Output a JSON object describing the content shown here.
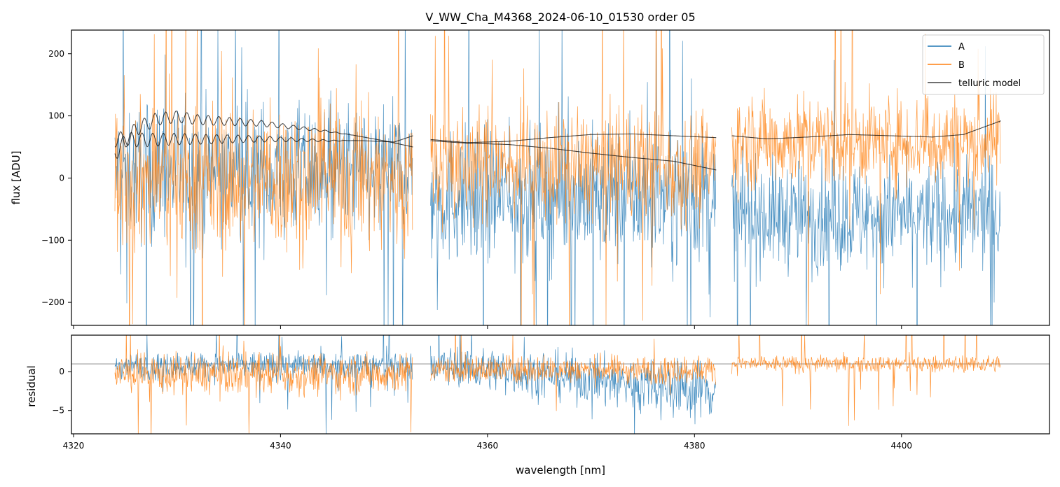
{
  "chart_data": {
    "type": "line",
    "title": "V_WW_Cha_M4368_2024-06-10_01530  order 05",
    "xlabel": "wavelength [nm]",
    "xlim": [
      4319.8,
      4414.3
    ],
    "xticks": [
      4320,
      4340,
      4360,
      4380,
      4400
    ],
    "xtick_labels": [
      "4320",
      "4340",
      "4360",
      "4380",
      "4400"
    ],
    "segments": [
      [
        4324,
        4352.8
      ],
      [
        4354.5,
        4382.1
      ],
      [
        4383.6,
        4409.6
      ]
    ],
    "top_panel": {
      "ylabel": "flux [ADU]",
      "ylim": [
        -237,
        238
      ],
      "yticks": [
        200,
        100,
        0,
        -100,
        -200
      ],
      "ytick_labels": [
        "200",
        "100",
        "0",
        "−100",
        "−200"
      ],
      "series": [
        {
          "name": "A",
          "color": "#1f77b4"
        },
        {
          "name": "B",
          "color": "#ff7f0e"
        },
        {
          "name": "telluric model",
          "color": "#000000"
        }
      ],
      "telluric_model": {
        "A": {
          "x": [
            4324,
            4326,
            4328,
            4330,
            4332,
            4334,
            4336,
            4338,
            4340,
            4342,
            4344,
            4346,
            4348,
            4350,
            4352.8,
            4354.5,
            4358,
            4362,
            4366,
            4370,
            4374,
            4378,
            4382.1
          ],
          "y": [
            52,
            90,
            105,
            108,
            102,
            99,
            96,
            93,
            88,
            83,
            78,
            72,
            66,
            60,
            50,
            60,
            56,
            54,
            48,
            40,
            33,
            27,
            13
          ]
        },
        "B": {
          "x": [
            4324,
            4327,
            4330,
            4333,
            4336,
            4339,
            4342,
            4345,
            4348,
            4351,
            4352.8,
            4354.5,
            4358,
            4362,
            4366,
            4370,
            4374,
            4378,
            4382.1,
            4383.6,
            4387,
            4391,
            4395,
            4399,
            4403,
            4406,
            4409.6
          ],
          "y": [
            75,
            72,
            72,
            70,
            69,
            67,
            64,
            61,
            60,
            58,
            68,
            62,
            57,
            59,
            65,
            70,
            71,
            68,
            65,
            68,
            63,
            66,
            70,
            68,
            66,
            70,
            92
          ]
        }
      },
      "legend": {
        "position": "top-right",
        "entries": [
          "A",
          "B",
          "telluric model"
        ]
      }
    },
    "bottom_panel": {
      "ylabel": "residual",
      "ylim": [
        -8,
        4.7
      ],
      "yticks": [
        0,
        -5
      ],
      "ytick_labels": [
        "0",
        "−5"
      ],
      "reference_line_y": 1.0
    }
  }
}
